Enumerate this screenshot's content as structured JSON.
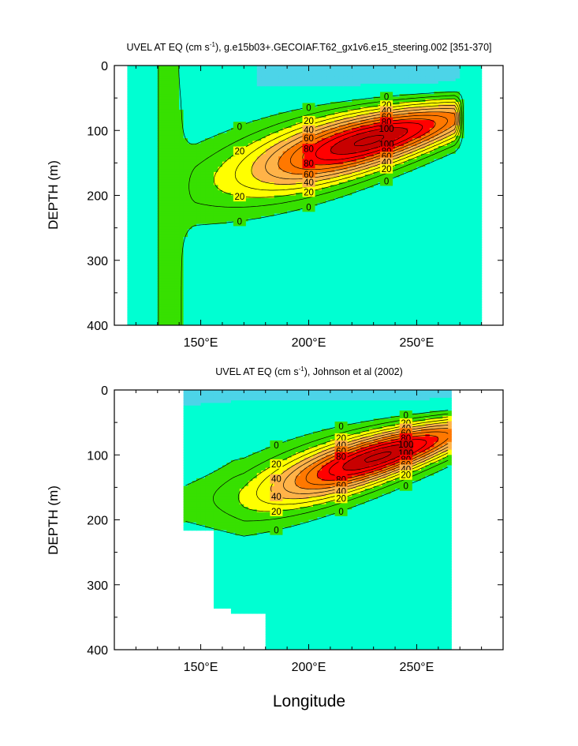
{
  "figure": {
    "xlabel": "Longitude",
    "colors": {
      "u_lt0": "#00ffd2",
      "u_0_20": "#37e000",
      "u_20_40": "#ffff00",
      "u_40_60": "#ffb348",
      "u_60_80": "#ff7800",
      "u_80_100": "#ff0000",
      "u_gt100": "#c80000",
      "u_strong_westward": "#4cd4e8",
      "contour": "#000000"
    }
  },
  "chart_data": [
    {
      "type": "heatmap",
      "title_main": "UVEL AT EQ (cm s",
      "title_sup": "-1",
      "title_rest": "), g.e15b03+.GECOIAF.T62_gx1v6.e15_steering.002 [351-370]",
      "xlabel": "",
      "ylabel": "DEPTH (m)",
      "xlim": [
        110,
        290
      ],
      "ylim": [
        400,
        0
      ],
      "x_ticks": [
        150,
        200,
        250
      ],
      "x_tick_labels": [
        "150°E",
        "200°E",
        "250°E"
      ],
      "y_ticks": [
        0,
        100,
        200,
        300,
        400
      ],
      "y_tick_labels": [
        "0",
        "100",
        "200",
        "300",
        "400"
      ],
      "data_xrange": [
        116,
        279
      ],
      "contour_levels": [
        0,
        10,
        20,
        30,
        40,
        50,
        60,
        70,
        80,
        90,
        100,
        110
      ],
      "labeled_levels": [
        "0",
        "20",
        "40",
        "60",
        "80",
        "100"
      ],
      "core": {
        "lon": 228,
        "depth": 115,
        "max_speed": 110
      },
      "undercurrent_tilt": "shoals eastward from ~180 m at 150°E to ~70 m at 265°E"
    },
    {
      "type": "heatmap",
      "title_main": "UVEL AT EQ (cm s",
      "title_sup": "-1",
      "title_rest": "), Johnson et al (2002)",
      "xlabel": "Longitude",
      "ylabel": "DEPTH (m)",
      "xlim": [
        110,
        290
      ],
      "ylim": [
        400,
        0
      ],
      "x_ticks": [
        150,
        200,
        250
      ],
      "x_tick_labels": [
        "150°E",
        "200°E",
        "250°E"
      ],
      "y_ticks": [
        0,
        100,
        200,
        300,
        400
      ],
      "y_tick_labels": [
        "0",
        "100",
        "200",
        "300",
        "400"
      ],
      "data_xrange": [
        143,
        265
      ],
      "contour_levels": [
        0,
        10,
        20,
        30,
        40,
        50,
        60,
        70,
        80,
        90,
        100,
        110
      ],
      "labeled_levels": [
        "0",
        "20",
        "40",
        "60",
        "80",
        "100"
      ],
      "core": {
        "lon": 232,
        "depth": 110,
        "max_speed": 110
      },
      "undercurrent_tilt": "shoals eastward from ~160 m at 180°E to ~75 m at 260°E"
    }
  ]
}
